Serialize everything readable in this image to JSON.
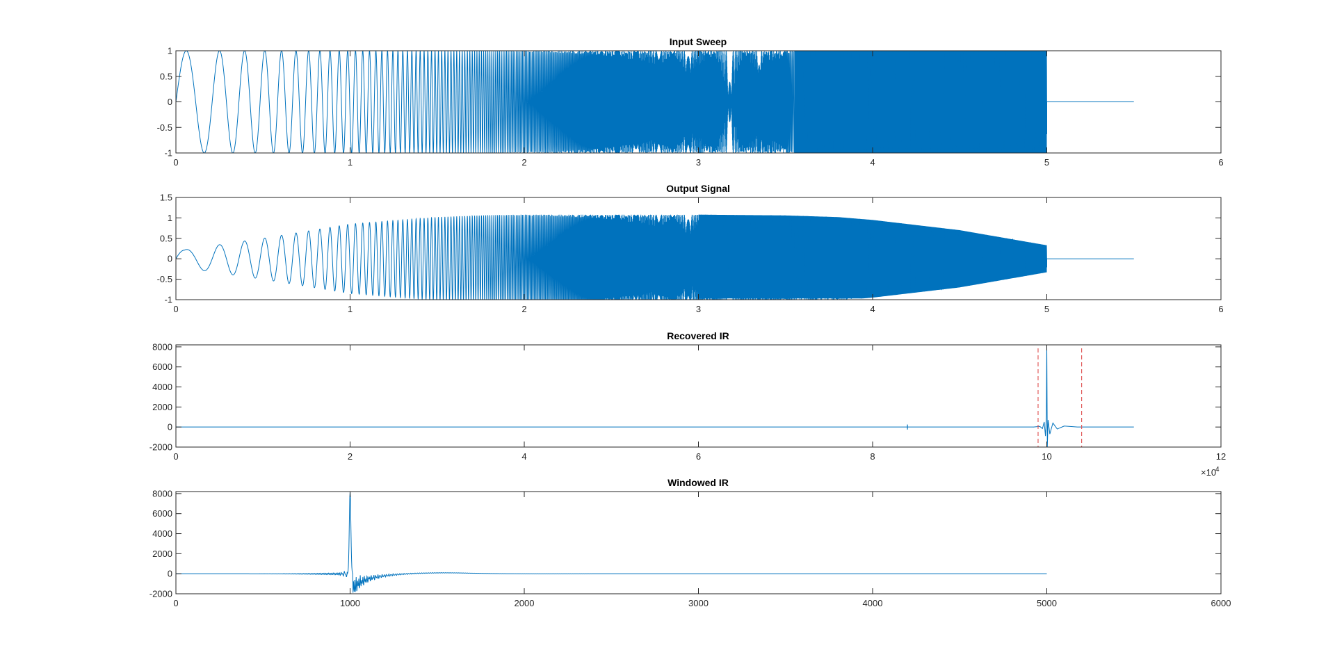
{
  "figure": {
    "background": "#ffffff",
    "axes_color": "#262626",
    "line_color": "#0072BD",
    "marker_color": "#E05A5A"
  },
  "chart_data": [
    {
      "type": "line",
      "title": "Input Sweep",
      "xlabel": "",
      "ylabel": "",
      "xlim": [
        0,
        6
      ],
      "ylim": [
        -1,
        1
      ],
      "xticks": [
        0,
        1,
        2,
        3,
        4,
        5,
        6
      ],
      "xtick_labels": [
        "0",
        "1",
        "2",
        "3",
        "4",
        "5",
        "6"
      ],
      "yticks": [
        -1,
        -0.5,
        0,
        0.5,
        1
      ],
      "ytick_labels": [
        "-1",
        "-0.5",
        "0",
        "0.5",
        "1"
      ],
      "grid": false,
      "series": [
        {
          "kind": "log-sine-sweep",
          "x_start": 0,
          "x_end": 5,
          "amplitude": 1,
          "tail_end": 5.5,
          "tail_value": 0,
          "color": "#0072BD"
        }
      ]
    },
    {
      "type": "line",
      "title": "Output Signal",
      "xlabel": "",
      "ylabel": "",
      "xlim": [
        0,
        6
      ],
      "ylim": [
        -1,
        1.5
      ],
      "xticks": [
        0,
        1,
        2,
        3,
        4,
        5,
        6
      ],
      "xtick_labels": [
        "0",
        "1",
        "2",
        "3",
        "4",
        "5",
        "6"
      ],
      "yticks": [
        -1,
        -0.5,
        0,
        0.5,
        1,
        1.5
      ],
      "ytick_labels": [
        "-1",
        "-0.5",
        "0",
        "0.5",
        "1",
        "1.5"
      ],
      "grid": false,
      "series": [
        {
          "kind": "filtered-sweep",
          "x_start": 0,
          "x_end": 5,
          "envelope_x": [
            0,
            0.05,
            0.5,
            1.0,
            1.5,
            1.8,
            2.0,
            2.5,
            3.0,
            3.5,
            3.8,
            4.0,
            4.5,
            5.0
          ],
          "envelope_y": [
            0.3,
            0.22,
            0.5,
            0.85,
            1.02,
            1.07,
            1.08,
            1.08,
            1.08,
            1.06,
            1.02,
            0.95,
            0.7,
            0.33
          ],
          "tail_end": 5.5,
          "tail_value": 0,
          "color": "#0072BD"
        }
      ]
    },
    {
      "type": "line",
      "title": "Recovered IR",
      "xlabel": "",
      "ylabel": "",
      "xlim": [
        0,
        120000
      ],
      "ylim": [
        -2000,
        8200
      ],
      "xticks": [
        0,
        20000,
        40000,
        60000,
        80000,
        100000,
        120000
      ],
      "xtick_labels": [
        "0",
        "2",
        "4",
        "6",
        "8",
        "10",
        "12"
      ],
      "yticks": [
        -2000,
        0,
        2000,
        4000,
        6000,
        8000
      ],
      "ytick_labels": [
        "-2000",
        "0",
        "2000",
        "4000",
        "6000",
        "8000"
      ],
      "x_exponent": {
        "base": "×10",
        "power": "4"
      },
      "grid": false,
      "series": [
        {
          "kind": "impulse",
          "x_start": 0,
          "x_end": 110000,
          "peak_x": 100000,
          "peak_y": 8200,
          "min_y": -2000,
          "small_blip_x": 84000,
          "color": "#0072BD"
        }
      ],
      "markers": [
        {
          "x": 99000,
          "style": "dashed",
          "color": "#E05A5A"
        },
        {
          "x": 104000,
          "style": "dashed",
          "color": "#E05A5A"
        }
      ]
    },
    {
      "type": "line",
      "title": "Windowed IR",
      "xlabel": "",
      "ylabel": "",
      "xlim": [
        0,
        6000
      ],
      "ylim": [
        -2000,
        8200
      ],
      "xticks": [
        0,
        1000,
        2000,
        3000,
        4000,
        5000,
        6000
      ],
      "xtick_labels": [
        "0",
        "1000",
        "2000",
        "3000",
        "4000",
        "5000",
        "6000"
      ],
      "yticks": [
        -2000,
        0,
        2000,
        4000,
        6000,
        8000
      ],
      "ytick_labels": [
        "-2000",
        "0",
        "2000",
        "4000",
        "6000",
        "8000"
      ],
      "grid": false,
      "series": [
        {
          "kind": "windowed-impulse",
          "x_start": 0,
          "x_end": 5000,
          "peak_x": 1000,
          "peak_y": 8200,
          "min_y": -2000,
          "color": "#0072BD"
        }
      ]
    }
  ]
}
